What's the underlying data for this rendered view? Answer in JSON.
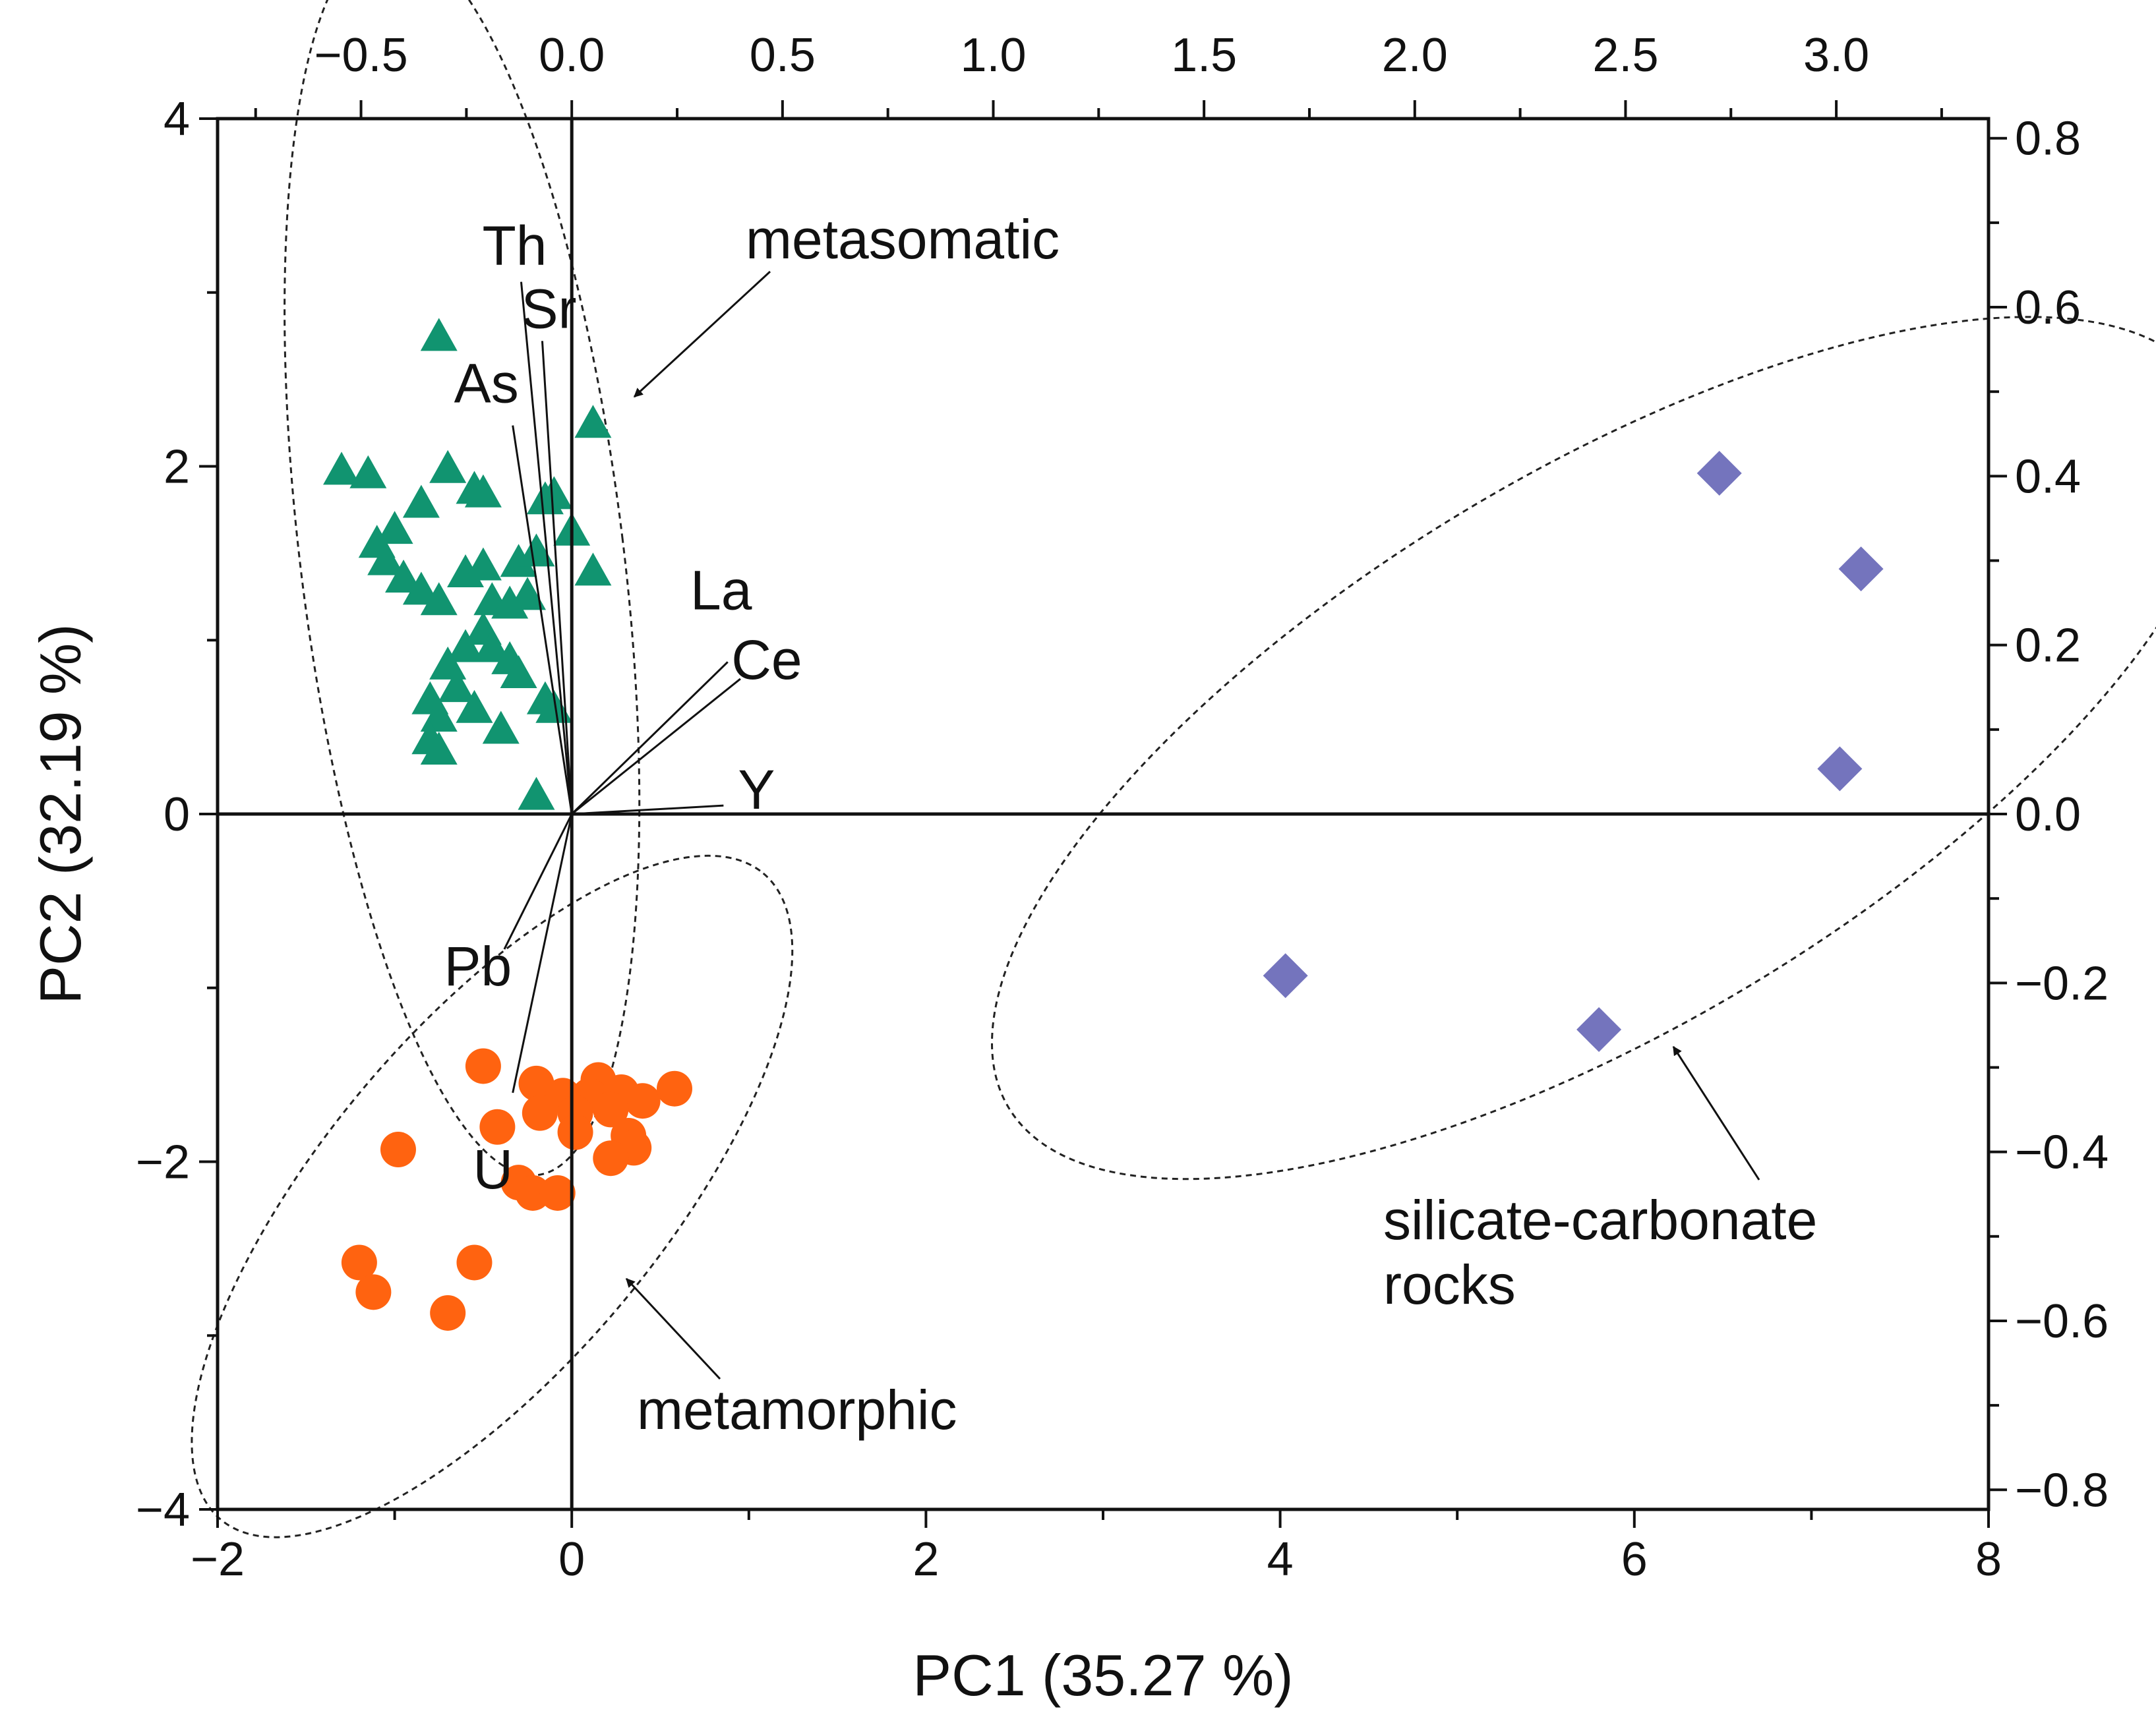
{
  "chart_data": {
    "type": "scatter",
    "subtype": "pca-biplot",
    "title": "",
    "xlabel": "PC1 (35.27 %)",
    "ylabel": "PC2 (32.19 %)",
    "xlim": [
      -2,
      8
    ],
    "ylim": [
      -4,
      4
    ],
    "x_ticks": [
      -2,
      0,
      2,
      4,
      6,
      8
    ],
    "x_tick_labels": [
      "−2",
      "0",
      "2",
      "4",
      "6",
      "8"
    ],
    "y_ticks": [
      -4,
      -2,
      0,
      2,
      4
    ],
    "y_tick_labels": [
      "−4",
      "−2",
      "0",
      "2",
      "4"
    ],
    "top_axis": {
      "lim": [
        -0.8403,
        3.3612
      ],
      "ticks": [
        -0.5,
        0.0,
        0.5,
        1.0,
        1.5,
        2.0,
        2.5,
        3.0
      ],
      "tick_labels": [
        "−0.5",
        "0.0",
        "0.5",
        "1.0",
        "1.5",
        "2.0",
        "2.5",
        "3.0"
      ]
    },
    "right_axis": {
      "lim": [
        -0.8232,
        0.8232
      ],
      "ticks": [
        -0.8,
        -0.6,
        -0.4,
        -0.2,
        0.0,
        0.2,
        0.4,
        0.6,
        0.8
      ],
      "tick_labels": [
        "−0.8",
        "−0.6",
        "−0.4",
        "−0.2",
        "0.0",
        "0.2",
        "0.4",
        "0.6",
        "0.8"
      ]
    },
    "zero_lines": true,
    "grid": false,
    "series": [
      {
        "name": "metasomatic",
        "marker": "triangle",
        "color": "#119470",
        "points": [
          [
            -0.75,
            2.74
          ],
          [
            -1.3,
            1.97
          ],
          [
            -1.15,
            1.95
          ],
          [
            -0.85,
            1.78
          ],
          [
            -0.55,
            1.86
          ],
          [
            -0.5,
            1.84
          ],
          [
            -0.1,
            1.83
          ],
          [
            -0.15,
            1.8
          ],
          [
            0.0,
            1.62
          ],
          [
            0.12,
            2.24
          ],
          [
            -0.7,
            1.98
          ],
          [
            -1.0,
            1.63
          ],
          [
            -1.1,
            1.55
          ],
          [
            -1.05,
            1.45
          ],
          [
            -0.95,
            1.35
          ],
          [
            -0.85,
            1.28
          ],
          [
            -0.75,
            1.22
          ],
          [
            -0.6,
            1.38
          ],
          [
            -0.5,
            1.42
          ],
          [
            -0.3,
            1.44
          ],
          [
            -0.2,
            1.5
          ],
          [
            -0.45,
            1.22
          ],
          [
            -0.35,
            1.2
          ],
          [
            -0.25,
            1.25
          ],
          [
            -0.5,
            1.05
          ],
          [
            -0.6,
            0.95
          ],
          [
            -0.7,
            0.85
          ],
          [
            -0.65,
            0.72
          ],
          [
            -0.45,
            0.95
          ],
          [
            -0.35,
            0.88
          ],
          [
            -0.3,
            0.8
          ],
          [
            -0.15,
            0.65
          ],
          [
            -0.1,
            0.6
          ],
          [
            -0.8,
            0.65
          ],
          [
            -0.75,
            0.55
          ],
          [
            -0.55,
            0.6
          ],
          [
            -0.4,
            0.48
          ],
          [
            -0.8,
            0.42
          ],
          [
            -0.75,
            0.36
          ],
          [
            -0.2,
            0.1
          ],
          [
            0.12,
            1.39
          ]
        ]
      },
      {
        "name": "metamorphic",
        "marker": "circle",
        "color": "#ff6310",
        "points": [
          [
            -0.5,
            -1.45
          ],
          [
            -0.2,
            -1.55
          ],
          [
            0.15,
            -1.53
          ],
          [
            -0.05,
            -1.62
          ],
          [
            0.1,
            -1.62
          ],
          [
            0.28,
            -1.6
          ],
          [
            0.4,
            -1.65
          ],
          [
            0.58,
            -1.58
          ],
          [
            -0.18,
            -1.72
          ],
          [
            0.02,
            -1.72
          ],
          [
            0.22,
            -1.7
          ],
          [
            -0.42,
            -1.8
          ],
          [
            0.32,
            -1.85
          ],
          [
            0.02,
            -1.83
          ],
          [
            -0.98,
            -1.93
          ],
          [
            0.35,
            -1.92
          ],
          [
            0.22,
            -1.98
          ],
          [
            -0.3,
            -2.12
          ],
          [
            -0.22,
            -2.18
          ],
          [
            -0.08,
            -2.18
          ],
          [
            -1.2,
            -2.58
          ],
          [
            -0.55,
            -2.58
          ],
          [
            -1.12,
            -2.75
          ],
          [
            -0.7,
            -2.87
          ]
        ]
      },
      {
        "name": "silicate-carbonate rocks",
        "marker": "diamond",
        "color": "#7474bd",
        "points": [
          [
            6.48,
            1.96
          ],
          [
            7.28,
            1.41
          ],
          [
            7.16,
            0.26
          ],
          [
            4.03,
            -0.93
          ],
          [
            5.8,
            -1.24
          ]
        ]
      }
    ],
    "loadings": [
      {
        "name": "Th",
        "x": -0.12,
        "y": 0.63
      },
      {
        "name": "Sr",
        "x": -0.07,
        "y": 0.56
      },
      {
        "name": "As",
        "x": -0.14,
        "y": 0.46
      },
      {
        "name": "La",
        "x": 0.37,
        "y": 0.18
      },
      {
        "name": "Ce",
        "x": 0.4,
        "y": 0.16
      },
      {
        "name": "Y",
        "x": 0.36,
        "y": 0.01
      },
      {
        "name": "Pb",
        "x": -0.16,
        "y": -0.16
      },
      {
        "name": "U",
        "x": -0.14,
        "y": -0.33
      }
    ],
    "group_annotations": [
      {
        "name": "metasomatic",
        "text": [
          "metasomatic"
        ]
      },
      {
        "name": "metamorphic",
        "text": [
          "metamorphic"
        ]
      },
      {
        "name": "silicate-carbonate",
        "text": [
          "silicate-carbonate",
          "rocks"
        ]
      }
    ]
  }
}
